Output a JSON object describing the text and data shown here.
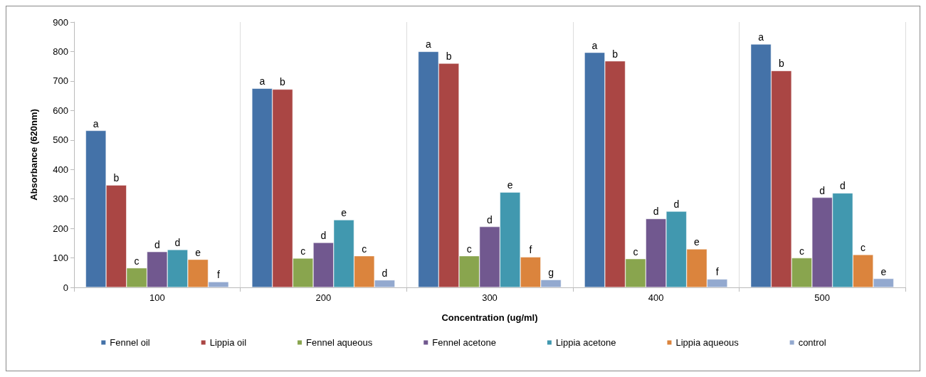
{
  "chart_data": {
    "type": "bar",
    "xlabel": "Concentration (ug/ml)",
    "ylabel": "Absorbance (620nm)",
    "categories": [
      "100",
      "200",
      "300",
      "400",
      "500"
    ],
    "ylim": [
      0,
      900
    ],
    "yticks": [
      0,
      100,
      200,
      300,
      400,
      500,
      600,
      700,
      800,
      900
    ],
    "grid": false,
    "legend": "bottom",
    "series": [
      {
        "name": "Fennel oil",
        "color": "#4472a8",
        "values": [
          532,
          675,
          800,
          797,
          825
        ],
        "value_labels": [
          "a",
          "a",
          "a",
          "a",
          "a"
        ]
      },
      {
        "name": "Lippia oil",
        "color": "#aa4644",
        "values": [
          347,
          672,
          760,
          768,
          735
        ],
        "value_labels": [
          "b",
          "b",
          "b",
          "b",
          "b"
        ]
      },
      {
        "name": "Fennel aqueous",
        "color": "#89a54e",
        "values": [
          66,
          99,
          107,
          97,
          100
        ],
        "value_labels": [
          "c",
          "c",
          "c",
          "c",
          "c"
        ]
      },
      {
        "name": "Fennel acetone",
        "color": "#71588f",
        "values": [
          121,
          152,
          206,
          233,
          305
        ],
        "value_labels": [
          "d",
          "d",
          "d",
          "d",
          "d"
        ]
      },
      {
        "name": "Lippia acetone",
        "color": "#4198af",
        "values": [
          128,
          229,
          323,
          258,
          320
        ],
        "value_labels": [
          "d",
          "e",
          "e",
          "d",
          "d"
        ]
      },
      {
        "name": "Lippia aqueous",
        "color": "#db843d",
        "values": [
          95,
          107,
          103,
          130,
          111
        ],
        "value_labels": [
          "e",
          "c",
          "f",
          "e",
          "c"
        ]
      },
      {
        "name": "control",
        "color": "#93a9cf",
        "values": [
          19,
          25,
          26,
          28,
          30
        ],
        "value_labels": [
          "f",
          "d",
          "g",
          "f",
          "e"
        ]
      }
    ]
  }
}
